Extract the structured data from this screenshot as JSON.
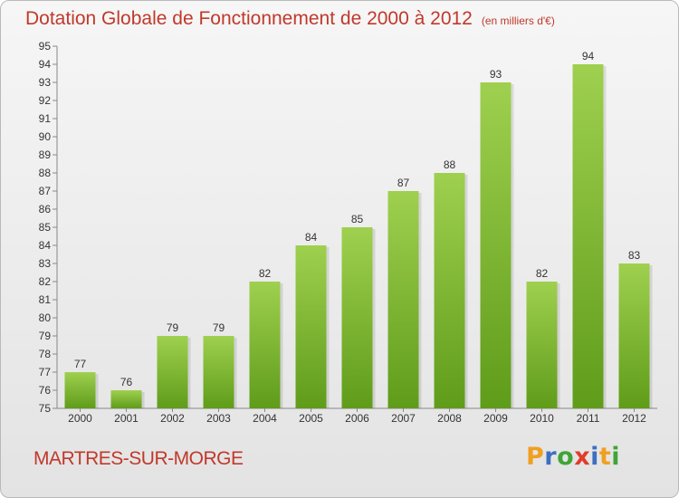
{
  "chart_data": {
    "type": "bar",
    "title": "Dotation Globale de Fonctionnement de 2000 à 2012",
    "subtitle": "(en milliers d'€)",
    "categories": [
      "2000",
      "2001",
      "2002",
      "2003",
      "2004",
      "2005",
      "2006",
      "2007",
      "2008",
      "2009",
      "2010",
      "2011",
      "2012"
    ],
    "values": [
      77,
      76,
      79,
      79,
      82,
      84,
      85,
      87,
      88,
      93,
      82,
      94,
      83
    ],
    "ylim": [
      75,
      95
    ],
    "yticks": [
      75,
      76,
      77,
      78,
      79,
      80,
      81,
      82,
      83,
      84,
      85,
      86,
      87,
      88,
      89,
      90,
      91,
      92,
      93,
      94,
      95
    ],
    "xlabel": "",
    "ylabel": "",
    "grid": false,
    "bar_color_top": "#9fd04f",
    "bar_color_bottom": "#5f9c1a"
  },
  "commune": "MARTRES-SUR-MORGE",
  "logo": {
    "letters": [
      "P",
      "r",
      "o",
      "x",
      "i",
      "t",
      "i"
    ],
    "colors": [
      "#f0a020",
      "#3d6fc0",
      "#3fa535",
      "#e23b2b",
      "#3d6fc0",
      "#f0a020",
      "#3fa535"
    ]
  }
}
